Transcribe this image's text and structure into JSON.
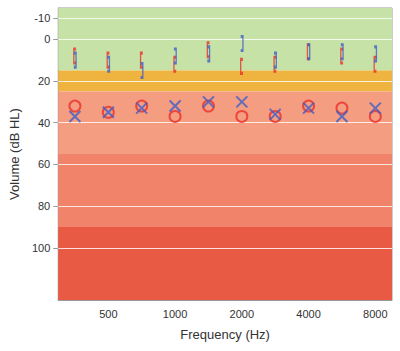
{
  "chart_data": {
    "type": "scatter",
    "x_label": "Frequency (Hz)",
    "y_label": "Volume (dB HL)",
    "categories": [
      null,
      "500",
      null,
      "1000",
      null,
      "2000",
      null,
      "4000",
      null,
      "8000"
    ],
    "ylim": [
      125,
      -15
    ],
    "yticks": [
      -10,
      0,
      20,
      40,
      60,
      80,
      100
    ],
    "grid": true,
    "bands": [
      {
        "from": -15,
        "to": 15,
        "color": "#c6e2a6"
      },
      {
        "from": 15,
        "to": 25,
        "color": "#efb43f"
      },
      {
        "from": 25,
        "to": 55,
        "color": "#f49d80"
      },
      {
        "from": 55,
        "to": 90,
        "color": "#f1836a"
      },
      {
        "from": 90,
        "to": 125,
        "color": "#e95a44"
      }
    ],
    "series": [
      {
        "color": "#e8322a",
        "marker": "circle",
        "values": [
          32,
          35,
          32,
          37,
          32,
          37,
          37,
          32,
          33,
          37
        ]
      },
      {
        "color": "#3f5fc8",
        "marker": "x",
        "values": [
          37,
          35,
          33,
          32,
          30,
          30,
          36,
          33,
          37,
          33
        ]
      },
      {
        "color": "#e8322a",
        "marker": "left_bracket",
        "values": [
          8,
          10,
          10,
          12,
          5,
          13,
          12,
          6,
          8,
          12
        ]
      },
      {
        "color": "#3f5fc8",
        "marker": "right_bracket",
        "values": [
          10,
          12,
          15,
          8,
          7,
          2,
          10,
          6,
          6,
          7
        ]
      }
    ]
  }
}
